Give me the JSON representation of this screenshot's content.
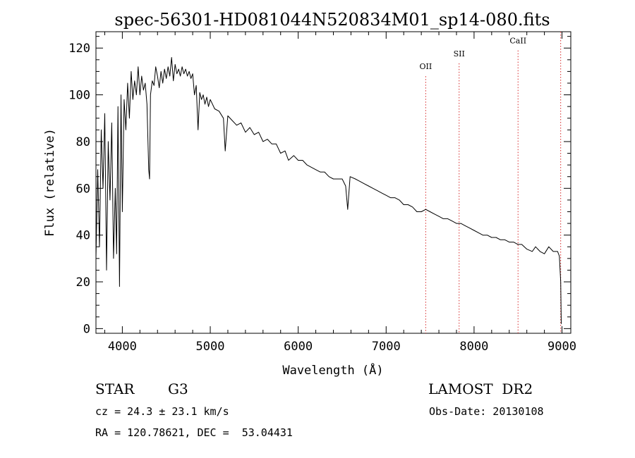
{
  "chart_data": {
    "type": "line",
    "title": "spec-56301-HD081044N520834M01_sp14-080.fits",
    "xlabel": "Wavelength (Å)",
    "ylabel": "Flux (relative)",
    "xlim": [
      3700,
      9100
    ],
    "ylim": [
      -2,
      127
    ],
    "x_ticks": [
      4000,
      5000,
      6000,
      7000,
      8000,
      9000
    ],
    "y_ticks": [
      0,
      20,
      40,
      60,
      80,
      100,
      120
    ],
    "grid": false,
    "line_color": "#000000",
    "series": [
      {
        "x": [
          3700,
          3720,
          3740,
          3760,
          3780,
          3800,
          3820,
          3840,
          3860,
          3880,
          3900,
          3920,
          3935,
          3950,
          3968,
          3985,
          4000,
          4020,
          4040,
          4060,
          4080,
          4100,
          4120,
          4140,
          4160,
          4180,
          4200,
          4220,
          4240,
          4260,
          4280,
          4300,
          4310,
          4320,
          4340,
          4360,
          4380,
          4400,
          4420,
          4440,
          4460,
          4480,
          4500,
          4520,
          4540,
          4560,
          4580,
          4600,
          4620,
          4640,
          4660,
          4680,
          4700,
          4720,
          4740,
          4760,
          4780,
          4800,
          4820,
          4840,
          4861,
          4880,
          4900,
          4920,
          4940,
          4960,
          4980,
          5000,
          5050,
          5100,
          5150,
          5170,
          5200,
          5250,
          5300,
          5350,
          5400,
          5450,
          5500,
          5550,
          5600,
          5650,
          5700,
          5750,
          5800,
          5850,
          5890,
          5950,
          6000,
          6050,
          6100,
          6150,
          6200,
          6250,
          6300,
          6350,
          6400,
          6450,
          6500,
          6540,
          6563,
          6590,
          6650,
          6700,
          6750,
          6800,
          6850,
          6900,
          6950,
          7000,
          7050,
          7100,
          7150,
          7200,
          7250,
          7300,
          7350,
          7400,
          7450,
          7500,
          7550,
          7600,
          7650,
          7700,
          7750,
          7800,
          7850,
          7900,
          7950,
          8000,
          8050,
          8100,
          8150,
          8200,
          8250,
          8300,
          8350,
          8400,
          8450,
          8498,
          8542,
          8600,
          8662,
          8700,
          8750,
          8800,
          8850,
          8900,
          8950,
          8970,
          8985,
          8992
        ],
        "y": [
          30,
          68,
          35,
          85,
          60,
          92,
          25,
          80,
          55,
          88,
          30,
          60,
          32,
          95,
          18,
          100,
          50,
          98,
          85,
          105,
          90,
          110,
          98,
          106,
          100,
          112,
          100,
          108,
          102,
          105,
          96,
          68,
          64,
          100,
          106,
          104,
          112,
          108,
          103,
          110,
          105,
          111,
          107,
          112,
          108,
          116,
          106,
          113,
          109,
          111,
          108,
          112,
          109,
          111,
          108,
          110,
          107,
          109,
          100,
          104,
          85,
          101,
          98,
          100,
          96,
          99,
          95,
          98,
          94,
          93,
          90,
          76,
          91,
          89,
          87,
          88,
          84,
          86,
          83,
          84,
          80,
          81,
          79,
          79,
          75,
          76,
          72,
          74,
          72,
          72,
          70,
          69,
          68,
          67,
          67,
          65,
          64,
          64,
          64,
          61,
          51,
          65,
          64,
          63,
          62,
          61,
          60,
          59,
          58,
          57,
          56,
          56,
          55,
          53,
          53,
          52,
          50,
          50,
          51,
          50,
          49,
          48,
          47,
          47,
          46,
          45,
          45,
          44,
          43,
          42,
          41,
          40,
          40,
          39,
          39,
          38,
          38,
          37,
          37,
          36,
          36,
          34,
          33,
          35,
          33,
          32,
          35,
          33,
          33,
          31,
          20,
          2
        ]
      }
    ],
    "annotations": [
      {
        "label": "OII",
        "x": 7450,
        "label_y": 111
      },
      {
        "label": "SII",
        "x": 7830,
        "label_y": 116.5
      },
      {
        "label": "CaII",
        "x": 8500,
        "label_y": 122
      },
      {
        "label": "",
        "x": 8985,
        "label_y": null
      }
    ],
    "annotation_color": "#d62728"
  },
  "footer": {
    "object_class": "STAR",
    "subclass": "G3",
    "cz": "cz = 24.3 ± 23.1 km/s",
    "coords": "RA = 120.78621, DEC =  53.04431",
    "survey": "LAMOST  DR2",
    "obs_date": "Obs-Date: 20130108"
  }
}
